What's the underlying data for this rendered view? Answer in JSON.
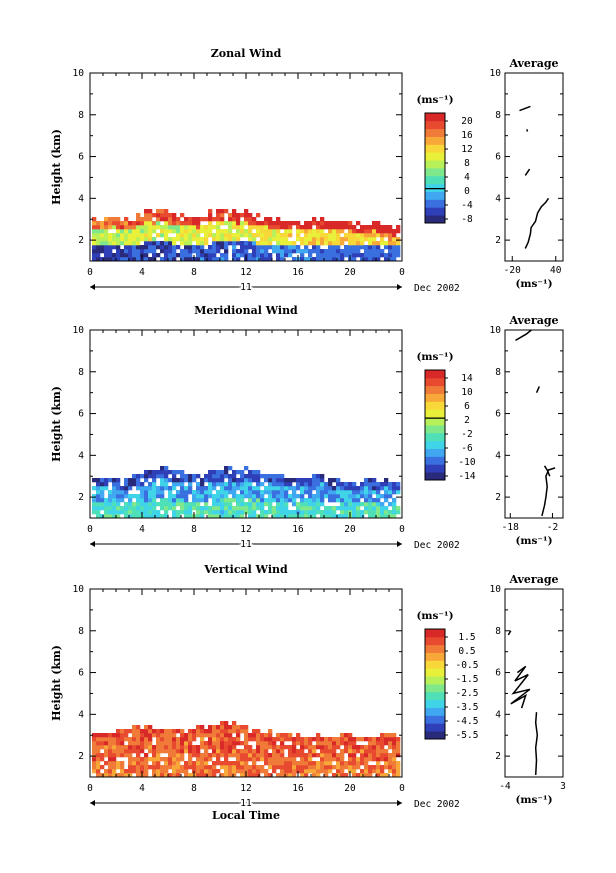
{
  "colormap": [
    "#2a2a7a",
    "#2f3fb8",
    "#3a6fe0",
    "#3fa8f0",
    "#3fd4e8",
    "#4fe0b8",
    "#7fe88a",
    "#b8f05a",
    "#e8f03a",
    "#f8d838",
    "#f8a838",
    "#f07a38",
    "#e84a30",
    "#d82828"
  ],
  "chart_data": [
    {
      "type": "heatmap",
      "title": "Zonal Wind",
      "ylabel": "Height (km)",
      "xlabel": "",
      "ylim": [
        1,
        10
      ],
      "xlim": [
        0,
        24
      ],
      "x_ticks": [
        "0",
        "4",
        "8",
        "12",
        "16",
        "20",
        "0"
      ],
      "y_ticks": [
        "2",
        "4",
        "6",
        "8",
        "10"
      ],
      "date_label": "Dec 2002",
      "day_label": "11",
      "colorbar": {
        "unit": "(ms⁻¹)",
        "ticks": [
          "20",
          "16",
          "12",
          "8",
          "4",
          "0",
          "-4",
          "-8"
        ],
        "range": [
          -10,
          22
        ],
        "zero_line": 0
      },
      "field_profile": {
        "top_km": [
          2.9,
          3.0,
          2.9,
          3.1,
          3.3,
          3.4,
          3.2,
          3.0,
          3.1,
          3.3,
          3.4,
          3.3,
          3.2,
          3.0,
          2.9,
          2.8,
          2.9,
          3.0,
          2.9,
          2.8,
          2.7,
          2.8,
          2.7,
          2.6
        ],
        "low_value": -5,
        "mid_value": 10,
        "high_value": 20,
        "trend": "east"
      },
      "average": {
        "title": "Average",
        "xlabel": "(ms⁻¹)",
        "x_ticks": [
          "-20",
          "40"
        ],
        "y_ticks": [
          "2",
          "4",
          "6",
          "8",
          "10"
        ],
        "xlim": [
          -30,
          50
        ],
        "segments": [
          [
            [
              -10,
              8.2
            ],
            [
              5,
              8.4
            ]
          ],
          [
            [
              0,
              7.3
            ],
            [
              1,
              7.2
            ]
          ],
          [
            [
              -2,
              5.1
            ],
            [
              4,
              5.4
            ]
          ],
          [
            [
              -2,
              1.6
            ],
            [
              2,
              1.9
            ],
            [
              5,
              2.3
            ],
            [
              6,
              2.6
            ],
            [
              12,
              2.9
            ],
            [
              15,
              3.3
            ],
            [
              20,
              3.6
            ],
            [
              26,
              3.8
            ],
            [
              30,
              4.0
            ]
          ]
        ]
      }
    },
    {
      "type": "heatmap",
      "title": "Meridional Wind",
      "ylabel": "Height (km)",
      "xlabel": "",
      "ylim": [
        1,
        10
      ],
      "xlim": [
        0,
        24
      ],
      "x_ticks": [
        "0",
        "4",
        "8",
        "12",
        "16",
        "20",
        "0"
      ],
      "y_ticks": [
        "2",
        "4",
        "6",
        "8",
        "10"
      ],
      "date_label": "Dec 2002",
      "day_label": "11",
      "colorbar": {
        "unit": "(ms⁻¹)",
        "ticks": [
          "14",
          "10",
          "6",
          "2",
          "-2",
          "-6",
          "-10",
          "-14"
        ],
        "range": [
          -16,
          16
        ],
        "zero_line": 2
      },
      "field_profile": {
        "top_km": [
          2.9,
          2.9,
          2.8,
          3.0,
          3.2,
          3.3,
          3.2,
          3.0,
          3.0,
          3.2,
          3.3,
          3.3,
          3.2,
          3.1,
          3.0,
          2.8,
          2.9,
          3.0,
          2.8,
          2.7,
          2.7,
          2.8,
          2.7,
          2.6
        ],
        "low_value": -4,
        "mid_value": -8,
        "high_value": -12,
        "trend": "none"
      },
      "average": {
        "title": "Average",
        "xlabel": "(ms⁻¹)",
        "x_ticks": [
          "-18",
          "-2"
        ],
        "y_ticks": [
          "2",
          "4",
          "6",
          "8",
          "10"
        ],
        "xlim": [
          -20,
          2
        ],
        "segments": [
          [
            [
              -16,
              9.5
            ],
            [
              -12,
              9.8
            ],
            [
              -10,
              10.0
            ]
          ],
          [
            [
              -8,
              7.0
            ],
            [
              -7,
              7.3
            ]
          ],
          [
            [
              -5,
              3.5
            ],
            [
              -4,
              3.3
            ],
            [
              -3,
              3.0
            ]
          ],
          [
            [
              -6,
              1.1
            ],
            [
              -5,
              1.6
            ],
            [
              -4.5,
              2.0
            ],
            [
              -4,
              2.5
            ],
            [
              -4.5,
              3.0
            ],
            [
              -3.5,
              3.3
            ],
            [
              -1,
              3.4
            ]
          ]
        ]
      }
    },
    {
      "type": "heatmap",
      "title": "Vertical Wind",
      "ylabel": "Height (km)",
      "xlabel": "Local Time",
      "ylim": [
        1,
        10
      ],
      "xlim": [
        0,
        24
      ],
      "x_ticks": [
        "0",
        "4",
        "8",
        "12",
        "16",
        "20",
        "0"
      ],
      "y_ticks": [
        "2",
        "4",
        "6",
        "8",
        "10"
      ],
      "date_label": "Dec 2002",
      "day_label": "11",
      "colorbar": {
        "unit": "(ms⁻¹)",
        "ticks": [
          "1.5",
          "0.5",
          "-0.5",
          "-1.5",
          "-2.5",
          "-3.5",
          "-4.5",
          "-5.5"
        ],
        "range": [
          -6,
          2
        ],
        "zero_line": null
      },
      "field_profile": {
        "top_km": [
          3.0,
          3.1,
          3.2,
          3.3,
          3.3,
          3.2,
          3.2,
          3.3,
          3.3,
          3.4,
          3.5,
          3.4,
          3.2,
          3.1,
          3.0,
          3.0,
          2.9,
          2.9,
          2.8,
          2.9,
          2.8,
          2.8,
          2.9,
          2.9
        ],
        "low_value": 0.6,
        "mid_value": 0.9,
        "high_value": 1.1,
        "trend": "none"
      },
      "average": {
        "title": "Average",
        "xlabel": "(ms⁻¹)",
        "x_ticks": [
          "-4",
          "3"
        ],
        "y_ticks": [
          "2",
          "4",
          "6",
          "8",
          "10"
        ],
        "xlim": [
          -4,
          3
        ],
        "segments": [
          [
            [
              -3.6,
              7.8
            ],
            [
              -3.3,
              8.0
            ]
          ],
          [
            [
              -2.5,
              6.0
            ],
            [
              -1.5,
              6.3
            ],
            [
              -2.8,
              5.6
            ],
            [
              -1.2,
              5.9
            ],
            [
              -3.0,
              5.0
            ],
            [
              -1.0,
              5.2
            ],
            [
              -3.3,
              4.5
            ],
            [
              -1.5,
              4.9
            ],
            [
              -2.0,
              4.3
            ]
          ],
          [
            [
              -0.3,
              1.1
            ],
            [
              -0.2,
              1.8
            ],
            [
              -0.3,
              2.4
            ],
            [
              -0.1,
              3.0
            ],
            [
              -0.3,
              3.6
            ],
            [
              -0.2,
              4.1
            ]
          ]
        ]
      }
    }
  ]
}
